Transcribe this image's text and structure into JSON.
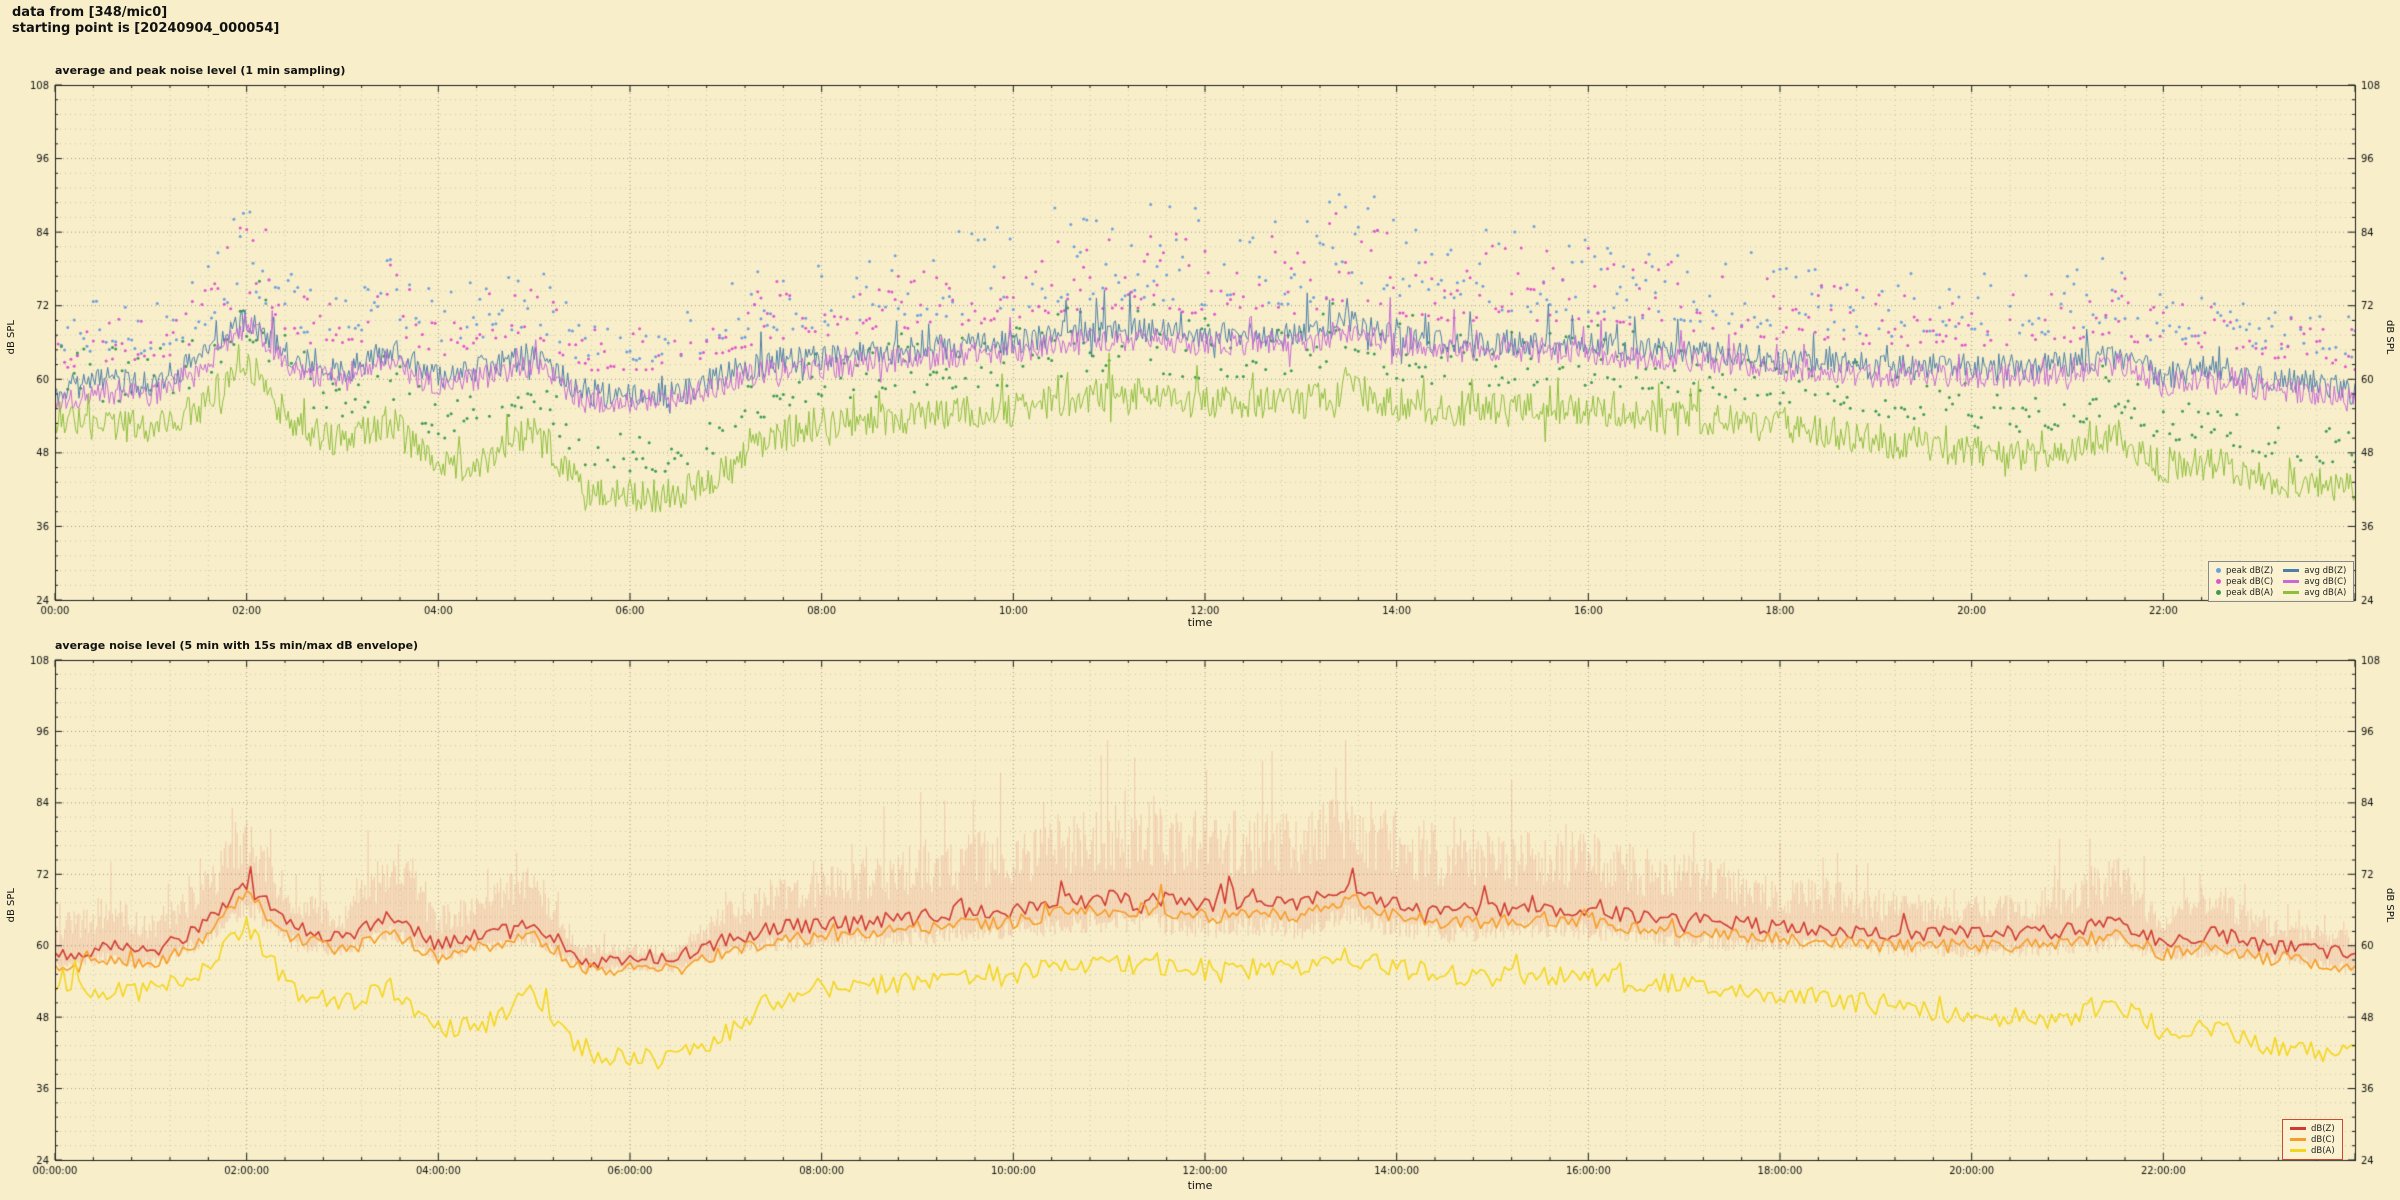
{
  "page": {
    "background": "#f8efca",
    "header_line1": "data from [348/mic0]",
    "header_line2": "starting point is [20240904_000054]"
  },
  "colors": {
    "grid_major": "#99988a",
    "grid_minor": "#c9c5aa",
    "axis_border": "#1a1a1a",
    "tick_text": "#111111",
    "legend1_border": "#8a8a8a",
    "legend2_border": "#cc4a35",
    "envelope_fill": "rgba(228,122,104,0.28)"
  },
  "chart_data": [
    {
      "type": "line",
      "title": "average and peak noise level (1 min sampling)",
      "xlabel": "time",
      "ylabel": "dB SPL",
      "ylabel_right": "dB SPL",
      "xlim_hours": [
        0,
        24
      ],
      "ylim": [
        24,
        108
      ],
      "yticks": [
        24,
        36,
        48,
        60,
        72,
        84,
        96,
        108
      ],
      "ytick_minor_step": 2.4,
      "xtick_hours": [
        0,
        2,
        4,
        6,
        8,
        10,
        12,
        14,
        16,
        18,
        20,
        22
      ],
      "xtick_labels": [
        "00:00",
        "02:00",
        "04:00",
        "06:00",
        "08:00",
        "10:00",
        "12:00",
        "14:00",
        "16:00",
        "18:00",
        "20:00",
        "22:00"
      ],
      "xminor_step_hours": 0.4,
      "grid": true,
      "keypoint_step_hours": 0.5,
      "sample_minutes": 1,
      "legend_position": "bottom-right",
      "legend_entries": [
        {
          "label": "peak dB(Z)",
          "marker": "dot",
          "color": "#6f9fde"
        },
        {
          "label": "peak dB(C)",
          "marker": "dot",
          "color": "#e255cb"
        },
        {
          "label": "peak dB(A)",
          "marker": "dot",
          "color": "#3f9b52"
        },
        {
          "label": "avg dB(Z)",
          "marker": "line",
          "color": "#4d7ea8"
        },
        {
          "label": "avg dB(C)",
          "marker": "line",
          "color": "#c76bd4"
        },
        {
          "label": "avg dB(A)",
          "marker": "line",
          "color": "#8fbe3d"
        }
      ],
      "series": [
        {
          "name": "peak dB(Z)",
          "type": "scatter",
          "color": "#6f9fde",
          "size": 1.5,
          "base": 3,
          "offset_min": 5,
          "offset_spread": 15,
          "step_min": 2,
          "seed": 44
        },
        {
          "name": "peak dB(C)",
          "type": "scatter",
          "color": "#e255cb",
          "size": 1.5,
          "base": 4,
          "offset_min": 5,
          "offset_spread": 13,
          "step_min": 2,
          "seed": 55
        },
        {
          "name": "peak dB(A)",
          "type": "scatter",
          "color": "#3f9b52",
          "size": 1.5,
          "base": 5,
          "offset_min": 4,
          "offset_spread": 11,
          "step_min": 2,
          "seed": 66
        },
        {
          "name": "avg dB(Z)",
          "type": "line",
          "color": "#4d7ea8",
          "width": 1,
          "values": [
            58,
            60,
            59,
            63,
            70,
            63,
            61,
            65,
            60,
            62,
            64,
            57.5,
            57.5,
            57.5,
            61,
            63,
            63.5,
            64,
            65,
            65.5,
            66,
            67.5,
            68,
            68,
            67,
            67.5,
            67,
            69.5,
            67,
            66,
            66,
            66,
            66,
            65,
            64.5,
            64,
            63,
            63,
            62,
            62,
            62,
            62,
            62.5,
            64,
            60.5,
            62,
            60,
            59.5,
            58
          ],
          "jitter": 2.2,
          "spike_prob": 0.06,
          "spike_amp": 9,
          "seed": 11
        },
        {
          "name": "avg dB(C)",
          "type": "line",
          "color": "#c76bd4",
          "width": 1,
          "values": [
            56.5,
            58,
            57.5,
            61,
            69,
            61.5,
            59.5,
            63,
            58.5,
            60.5,
            62.5,
            56.5,
            56.5,
            56.5,
            59.5,
            61.5,
            62,
            62.5,
            63.5,
            64,
            64.5,
            66,
            66.5,
            66.5,
            65.5,
            66,
            65.5,
            68,
            65.5,
            64.5,
            64.5,
            64.5,
            64.5,
            63.5,
            63,
            62.5,
            61.5,
            61.5,
            60.5,
            60.5,
            60.5,
            60.5,
            61,
            62.5,
            59,
            60.5,
            58.5,
            58,
            56.5
          ],
          "jitter": 2.0,
          "spike_prob": 0.05,
          "spike_amp": 8,
          "seed": 22
        },
        {
          "name": "avg dB(A)",
          "type": "line",
          "color": "#8fbe3d",
          "width": 1,
          "values": [
            54,
            52,
            52.5,
            55,
            63,
            52,
            50,
            53,
            46,
            47,
            52,
            42,
            41,
            41,
            45,
            51,
            53,
            53,
            54,
            54.5,
            55,
            56.5,
            57,
            57,
            56,
            56.5,
            56,
            58.5,
            56,
            55,
            55,
            55,
            55,
            54,
            53.5,
            53,
            52,
            51.5,
            50,
            49.5,
            48,
            47.5,
            48,
            51,
            45.5,
            46.5,
            43.5,
            42.5,
            42
          ],
          "jitter": 2.8,
          "spike_prob": 0.06,
          "spike_amp": 8,
          "seed": 33
        }
      ]
    },
    {
      "type": "line",
      "title": "average noise level (5 min with 15s min/max dB envelope)",
      "xlabel": "time",
      "ylabel": "dB SPL",
      "ylabel_right": "dB SPL",
      "xlim_hours": [
        0,
        24
      ],
      "ylim": [
        24,
        108
      ],
      "yticks": [
        24,
        36,
        48,
        60,
        72,
        84,
        96,
        108
      ],
      "ytick_minor_step": 2.4,
      "xtick_hours": [
        0,
        2,
        4,
        6,
        8,
        10,
        12,
        14,
        16,
        18,
        20,
        22
      ],
      "xtick_labels": [
        "00:00:00",
        "02:00:00",
        "04:00:00",
        "06:00:00",
        "08:00:00",
        "10:00:00",
        "12:00:00",
        "14:00:00",
        "16:00:00",
        "18:00:00",
        "20:00:00",
        "22:00:00"
      ],
      "xminor_step_hours": 0.4,
      "grid": true,
      "keypoint_step_hours": 0.5,
      "sample_minutes": 2.5,
      "legend_position": "bottom-right",
      "legend_entries": [
        {
          "label": "dB(Z)",
          "marker": "line",
          "color": "#cf3b33"
        },
        {
          "label": "dB(C)",
          "marker": "line",
          "color": "#f59d28"
        },
        {
          "label": "dB(A)",
          "marker": "line",
          "color": "#f3d51e"
        }
      ],
      "series": [
        {
          "name": "dB(Z)",
          "type": "line",
          "color": "#cf3b33",
          "width": 1.6,
          "values": [
            58,
            60,
            59,
            63,
            70,
            63,
            61,
            65,
            60,
            62,
            64,
            57.5,
            57.5,
            57.5,
            61,
            63,
            63.5,
            64,
            65,
            65.5,
            66,
            67.5,
            68,
            68,
            67,
            67.5,
            67,
            69.5,
            67,
            66,
            66,
            66,
            66,
            65,
            64.5,
            64,
            63,
            63,
            62,
            62,
            62,
            62,
            62.5,
            64,
            60.5,
            62,
            60,
            59.5,
            58
          ],
          "jitter": 1.3,
          "spike_prob": 0.05,
          "spike_amp": 6,
          "seed": 77,
          "envelope": {
            "color": "rgba(228,122,104,0.28)",
            "seed": 99,
            "up": [
              6,
              8,
              6,
              8,
              11,
              6,
              5,
              13,
              6,
              8,
              9,
              2.5,
              2.5,
              2.5,
              6,
              8,
              9,
              10,
              12,
              12,
              13,
              14,
              15,
              15,
              14,
              14,
              14,
              15,
              14,
              13,
              12,
              12,
              12,
              11,
              10,
              9,
              8,
              8,
              7,
              6,
              6,
              6,
              9,
              11,
              5,
              8,
              5,
              4,
              4
            ],
            "down": [
              3,
              3,
              3,
              4,
              5,
              4,
              3,
              4,
              3,
              3,
              4,
              2,
              2,
              2,
              3,
              4,
              4,
              4,
              5,
              5,
              5,
              6,
              6,
              6,
              6,
              6,
              6,
              6,
              6,
              6,
              5,
              5,
              5,
              5,
              5,
              5,
              4,
              4,
              4,
              4,
              4,
              4,
              4,
              5,
              3,
              4,
              3,
              3,
              3
            ]
          }
        },
        {
          "name": "dB(C)",
          "type": "line",
          "color": "#f59d28",
          "width": 1.6,
          "values": [
            56,
            57.5,
            57,
            60.5,
            68.5,
            61,
            59,
            62.5,
            58,
            60,
            62,
            56,
            56,
            56,
            59,
            61,
            61.5,
            62,
            63,
            63.5,
            64,
            65.5,
            66,
            66,
            65,
            65.5,
            65,
            67.5,
            65,
            64,
            64,
            64,
            64,
            63,
            62.5,
            62,
            61,
            61,
            60,
            60,
            60,
            60,
            60.5,
            62,
            58.5,
            60,
            58,
            57.5,
            56
          ],
          "jitter": 1.2,
          "spike_prob": 0.04,
          "spike_amp": 5,
          "seed": 88
        },
        {
          "name": "dB(A)",
          "type": "line",
          "color": "#f3d51e",
          "width": 1.6,
          "values": [
            54,
            52,
            52.5,
            55,
            63,
            52,
            50,
            53,
            46,
            47,
            52,
            42,
            41,
            41,
            45,
            51,
            53,
            53,
            54,
            54.5,
            55,
            56.5,
            57,
            57,
            56,
            56.5,
            56,
            58.5,
            56,
            55,
            55,
            55,
            55,
            54,
            53.5,
            53,
            52,
            51.5,
            50,
            49.5,
            48,
            47.5,
            48,
            51,
            45.5,
            46.5,
            43.5,
            42.5,
            42
          ],
          "jitter": 1.8,
          "spike_prob": 0.05,
          "spike_amp": 5,
          "seed": 90
        }
      ]
    }
  ]
}
